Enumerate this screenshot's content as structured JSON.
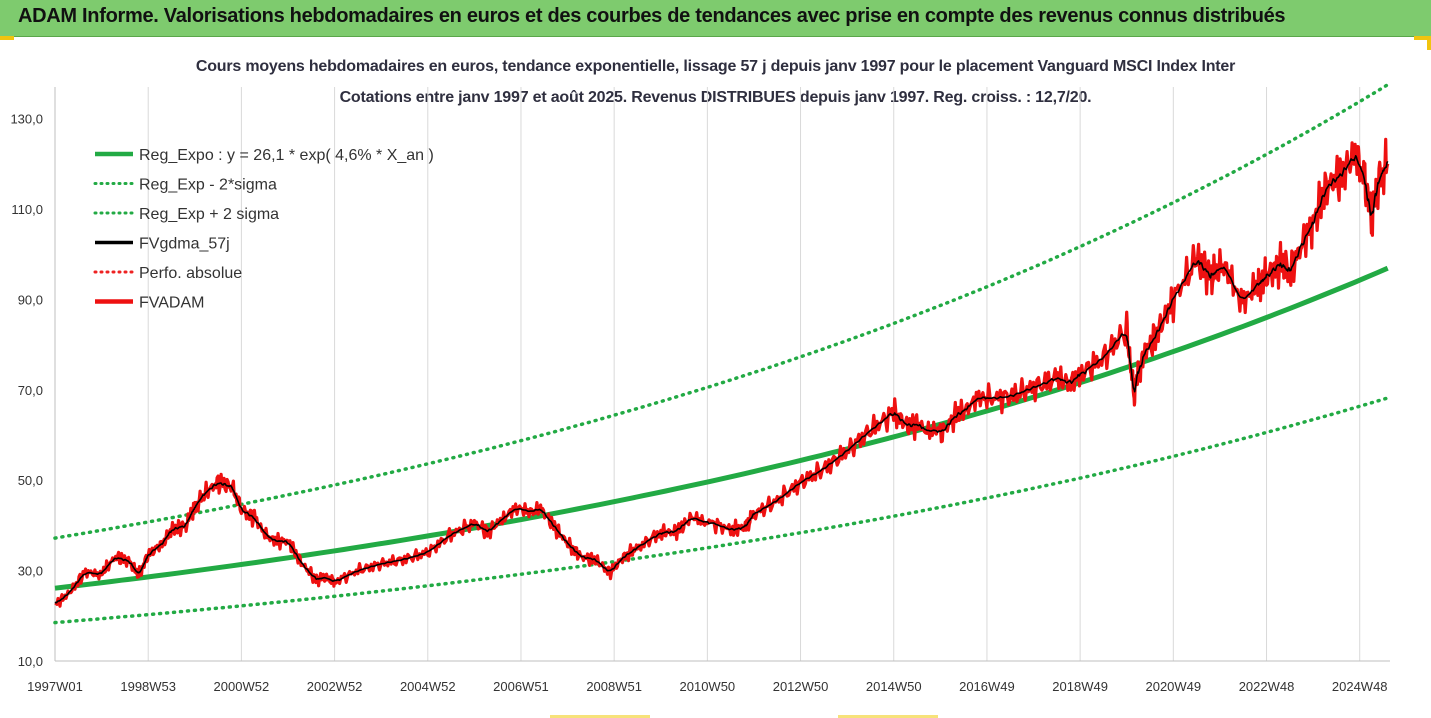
{
  "header": {
    "title": "ADAM Informe. Valorisations hebdomadaires en euros et des courbes de tendances avec prise en compte des revenus connus distribués"
  },
  "chart_data": {
    "type": "line",
    "title_line1": "Cours moyens hebdomadaires en euros, tendance exponentielle, lissage 57 j depuis janv 1997 pour le placement Vanguard MSCI Index Inter",
    "title_line2": "Cotations entre janv 1997 et août 2025. Revenus DISTRIBUES depuis janv 1997. Reg. croiss. : 12,7/20.",
    "x_tick_labels": [
      "1997W01",
      "1998W53",
      "2000W52",
      "2002W52",
      "2004W52",
      "2006W51",
      "2008W51",
      "2010W50",
      "2012W50",
      "2014W50",
      "2016W49",
      "2018W49",
      "2020W49",
      "2022W48",
      "2024W48"
    ],
    "x_range": [
      1997.0,
      2025.65
    ],
    "y_ticks": [
      "10,0",
      "30,0",
      "50,0",
      "70,0",
      "90,0",
      "110,0",
      "130,0"
    ],
    "ylim": [
      10,
      137
    ],
    "grid": "vertical",
    "legend_placement": "top-left",
    "legend": [
      {
        "label": "Reg_Expo : y = 26,1 * exp( 4,6% *  X_an )",
        "color": "#22aa44",
        "style": "solid-thick"
      },
      {
        "label": "Reg_Exp - 2*sigma",
        "color": "#22aa44",
        "style": "dotted"
      },
      {
        "label": "Reg_Exp + 2 sigma",
        "color": "#22aa44",
        "style": "dotted"
      },
      {
        "label": "FVgdma_57j",
        "color": "#000000",
        "style": "solid"
      },
      {
        "label": "Perfo. absolue",
        "color": "#ee2222",
        "style": "dotted"
      },
      {
        "label": "FVADAM",
        "color": "#ee1111",
        "style": "solid-thick"
      }
    ],
    "series": [
      {
        "name": "Reg_Expo : y = 26,1 * exp( 4,6% *  X_an )",
        "formula": {
          "a": 26.1,
          "rate": 0.046,
          "start_year": 1997
        },
        "x": [
          1997.0,
          2025.6
        ],
        "values": [
          26.1,
          96.9
        ]
      },
      {
        "name": "Reg_Exp - 2*sigma",
        "x": [
          1997.0,
          2025.6
        ],
        "values": [
          18.5,
          68.2
        ]
      },
      {
        "name": "Reg_Exp + 2 sigma",
        "x": [
          1997.0,
          2025.6
        ],
        "values": [
          37.2,
          137.5
        ]
      },
      {
        "name": "FVADAM",
        "x": [
          1997.0,
          1997.3,
          1997.6,
          1998.0,
          1998.3,
          1998.6,
          1998.8,
          1999.0,
          1999.3,
          1999.5,
          1999.8,
          2000.0,
          2000.2,
          2000.5,
          2000.8,
          2001.0,
          2001.3,
          2001.7,
          2002.0,
          2002.3,
          2002.6,
          2002.8,
          2003.0,
          2003.5,
          2004.0,
          2004.5,
          2005.0,
          2005.5,
          2006.0,
          2006.3,
          2006.6,
          2007.0,
          2007.4,
          2007.7,
          2008.0,
          2008.3,
          2008.6,
          2008.9,
          2009.2,
          2009.5,
          2010.0,
          2010.3,
          2010.6,
          2011.0,
          2011.5,
          2011.8,
          2012.0,
          2012.5,
          2013.0,
          2013.5,
          2014.0,
          2014.5,
          2015.0,
          2015.3,
          2015.6,
          2016.0,
          2016.3,
          2016.6,
          2017.0,
          2017.5,
          2018.0,
          2018.5,
          2018.8,
          2019.0,
          2019.5,
          2020.0,
          2020.15,
          2020.25,
          2020.4,
          2020.7,
          2021.0,
          2021.5,
          2021.8,
          2022.0,
          2022.4,
          2022.8,
          2023.0,
          2023.3,
          2023.5,
          2023.8,
          2024.0,
          2024.3,
          2024.6,
          2024.9,
          2025.1,
          2025.25,
          2025.4,
          2025.6
        ],
        "values": [
          22.5,
          25.0,
          29.0,
          29.5,
          33.0,
          32.0,
          29.0,
          33.5,
          36.0,
          39.0,
          40.0,
          44.0,
          47.0,
          49.5,
          48.5,
          43.5,
          41.5,
          36.5,
          36.5,
          31.5,
          28.0,
          28.5,
          27.5,
          30.0,
          31.5,
          32.5,
          34.0,
          38.0,
          40.5,
          38.5,
          41.5,
          43.5,
          44.0,
          40.0,
          36.0,
          33.0,
          32.5,
          29.5,
          33.0,
          35.0,
          38.5,
          38.5,
          41.0,
          41.0,
          39.0,
          39.5,
          42.5,
          45.5,
          49.5,
          52.5,
          56.5,
          61.0,
          65.0,
          62.0,
          62.5,
          60.0,
          64.0,
          66.0,
          68.0,
          68.5,
          70.5,
          72.5,
          71.5,
          73.5,
          77.0,
          83.5,
          69.0,
          74.0,
          78.0,
          83.5,
          90.0,
          99.0,
          95.0,
          97.0,
          91.0,
          93.0,
          95.0,
          98.0,
          96.0,
          103.0,
          107.0,
          115.0,
          117.5,
          122.0,
          117.0,
          107.5,
          116.5,
          120.0
        ]
      },
      {
        "name": "FVgdma_57j",
        "description_values_follow_FVADAM_smoothed": true
      }
    ]
  }
}
